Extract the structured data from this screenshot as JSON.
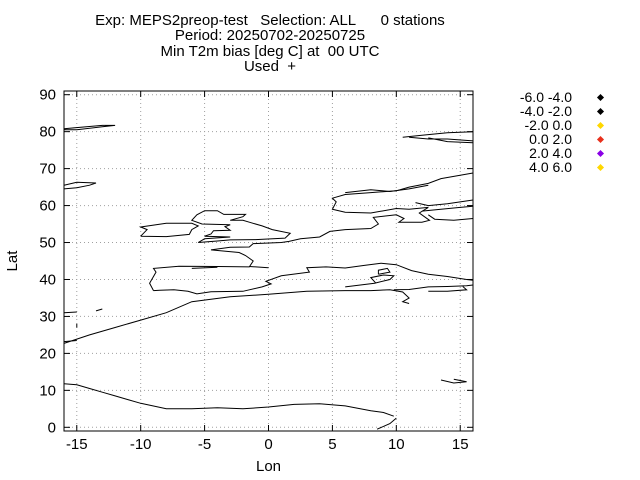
{
  "header": {
    "line1": "Exp: MEPS2preop-test   Selection: ALL      0 stations",
    "line2": "Period: 20250702-20250725",
    "line3": "Min T2m bias [deg C] at  00 UTC",
    "line4": "Used  +"
  },
  "axes": {
    "xlabel": "Lon",
    "ylabel": "Lat",
    "xlim": [
      -16,
      16
    ],
    "ylim": [
      -1,
      91
    ],
    "xticks": [
      -15,
      -10,
      -5,
      0,
      5,
      10,
      15
    ],
    "yticks": [
      0,
      10,
      20,
      30,
      40,
      50,
      60,
      70,
      80,
      90
    ],
    "grid": true
  },
  "legend": {
    "placement": "top-right",
    "items": [
      {
        "label": "-6.0 -4.0",
        "color": "#000000"
      },
      {
        "label": "-4.0 -2.0",
        "color": "#000000"
      },
      {
        "label": "-2.0 0.0",
        "color": "#ffd700"
      },
      {
        "label": "0.0 2.0",
        "color": "#e8301c"
      },
      {
        "label": "2.0 4.0",
        "color": "#8a00e6"
      },
      {
        "label": "4.0 6.0",
        "color": "#ffd700"
      }
    ]
  },
  "coastlines": [
    [
      [
        -16,
        11.8
      ],
      [
        -15,
        11.5
      ],
      [
        -14,
        10.5
      ],
      [
        -13,
        9.5
      ],
      [
        -12,
        8.5
      ],
      [
        -11,
        7.5
      ],
      [
        -10,
        6.5
      ],
      [
        -8,
        5
      ],
      [
        -6,
        5
      ],
      [
        -4,
        5.3
      ],
      [
        -2,
        5
      ],
      [
        0,
        5.5
      ],
      [
        2,
        6.2
      ],
      [
        4,
        6.4
      ],
      [
        6,
        5.8
      ],
      [
        8,
        4.5
      ],
      [
        9,
        4
      ],
      [
        9.8,
        3
      ]
    ],
    [
      [
        -16,
        22.7
      ],
      [
        -14,
        25
      ],
      [
        -12,
        27
      ],
      [
        -10,
        29
      ],
      [
        -8,
        31
      ],
      [
        -6,
        34
      ],
      [
        -3,
        35.3
      ],
      [
        0,
        36
      ],
      [
        3,
        36.8
      ],
      [
        6,
        37
      ],
      [
        8,
        37
      ],
      [
        9.5,
        37.2
      ],
      [
        10.5,
        36.6
      ],
      [
        11,
        35
      ],
      [
        10.5,
        34
      ],
      [
        11,
        33.5
      ]
    ],
    [
      [
        -16,
        23.2
      ],
      [
        -15,
        23.5
      ]
    ],
    [
      [
        9.8,
        37.2
      ],
      [
        11,
        37.3
      ],
      [
        12.5,
        38
      ],
      [
        14,
        38.1
      ],
      [
        15.5,
        38.3
      ],
      [
        16,
        38.5
      ]
    ],
    [
      [
        -9,
        37
      ],
      [
        -9.3,
        39
      ],
      [
        -8.8,
        42
      ],
      [
        -9,
        43
      ],
      [
        -7,
        43.6
      ],
      [
        -4,
        43.5
      ],
      [
        -1.5,
        43.4
      ],
      [
        -1.2,
        45
      ],
      [
        -1.8,
        46.5
      ],
      [
        -2.3,
        47.3
      ],
      [
        -4.5,
        48
      ],
      [
        -3,
        48.7
      ],
      [
        -1.5,
        48.8
      ],
      [
        -1.2,
        49.7
      ],
      [
        1,
        50
      ],
      [
        1.6,
        50.3
      ],
      [
        2.5,
        51
      ],
      [
        4,
        51.5
      ],
      [
        4.8,
        53
      ],
      [
        6,
        53.5
      ],
      [
        8,
        53.8
      ],
      [
        8.6,
        55
      ],
      [
        8.2,
        56.8
      ],
      [
        10,
        57.5
      ],
      [
        10.6,
        56.5
      ],
      [
        10.2,
        55.5
      ],
      [
        12,
        55.5
      ],
      [
        12.6,
        56
      ],
      [
        11.8,
        58
      ],
      [
        12.5,
        59.5
      ],
      [
        11,
        59
      ],
      [
        10,
        59.2
      ],
      [
        8,
        58
      ],
      [
        6,
        58.2
      ],
      [
        5,
        59
      ],
      [
        5.3,
        61
      ],
      [
        5,
        62
      ],
      [
        6,
        63
      ],
      [
        8,
        63.5
      ],
      [
        10,
        64
      ],
      [
        11,
        65
      ],
      [
        12.5,
        66
      ],
      [
        13.5,
        67.3
      ],
      [
        15,
        68.2
      ],
      [
        16,
        68.8
      ]
    ],
    [
      [
        -9,
        37
      ],
      [
        -8.5,
        37.1
      ],
      [
        -7.4,
        37.2
      ],
      [
        -6.3,
        36.8
      ],
      [
        -5.6,
        36.1
      ],
      [
        -4.5,
        36.7
      ],
      [
        -2,
        36.8
      ],
      [
        -0.5,
        38
      ],
      [
        0.2,
        38.8
      ],
      [
        -0.2,
        39.5
      ],
      [
        1,
        41
      ],
      [
        3.2,
        42
      ],
      [
        3,
        43.2
      ],
      [
        4.5,
        43.4
      ],
      [
        6,
        43.1
      ],
      [
        7.5,
        43.8
      ],
      [
        8.8,
        44.4
      ],
      [
        10,
        44
      ],
      [
        11.2,
        42.4
      ],
      [
        12.5,
        41.4
      ],
      [
        14,
        40.8
      ],
      [
        15.5,
        40
      ],
      [
        16,
        39.8
      ]
    ],
    [
      [
        -5.5,
        50
      ],
      [
        -4,
        50.4
      ],
      [
        -3,
        50.7
      ],
      [
        -1,
        50.8
      ],
      [
        1.3,
        51.2
      ],
      [
        1.7,
        52.5
      ],
      [
        0.3,
        53.5
      ],
      [
        -0.5,
        54.5
      ],
      [
        -1.5,
        55.5
      ],
      [
        -2,
        56
      ],
      [
        -3,
        56
      ],
      [
        -2,
        57
      ],
      [
        -1.8,
        57.6
      ],
      [
        -3.5,
        57.6
      ],
      [
        -4,
        58.6
      ],
      [
        -5,
        58.6
      ],
      [
        -5.6,
        57.5
      ],
      [
        -6,
        56
      ],
      [
        -5.2,
        55
      ],
      [
        -3,
        54.8
      ],
      [
        -3.4,
        54.3
      ],
      [
        -3,
        53.3
      ],
      [
        -4.3,
        53.2
      ],
      [
        -4.5,
        52.3
      ],
      [
        -5,
        51.7
      ],
      [
        -3,
        51.5
      ],
      [
        -5,
        51
      ],
      [
        -5.5,
        50
      ]
    ],
    [
      [
        -10,
        51.7
      ],
      [
        -9.5,
        53.5
      ],
      [
        -10,
        54.2
      ],
      [
        -8,
        55.2
      ],
      [
        -6,
        55.2
      ],
      [
        -5.5,
        54.5
      ],
      [
        -6,
        53.5
      ],
      [
        -6.2,
        52.2
      ],
      [
        -8,
        51.6
      ],
      [
        -10,
        51.7
      ]
    ],
    [
      [
        -16,
        65.5
      ],
      [
        -15,
        66.3
      ],
      [
        -13.5,
        66.1
      ],
      [
        -14,
        65.5
      ],
      [
        -15,
        64.8
      ],
      [
        -16,
        64.5
      ]
    ],
    [
      [
        -16,
        80.8
      ],
      [
        -13,
        81.7
      ],
      [
        -12,
        81.7
      ],
      [
        -13,
        81.3
      ],
      [
        -15,
        80.5
      ],
      [
        -16,
        80.5
      ]
    ],
    [
      [
        10.5,
        78.5
      ],
      [
        12,
        79
      ],
      [
        14,
        79.7
      ],
      [
        16,
        80
      ]
    ],
    [
      [
        11,
        78.5
      ],
      [
        12.5,
        78
      ],
      [
        14,
        78
      ],
      [
        16,
        77.5
      ]
    ],
    [
      [
        12.5,
        78.3
      ],
      [
        14,
        77.3
      ],
      [
        16,
        77
      ]
    ],
    [
      [
        -16,
        31
      ],
      [
        -15,
        31.2
      ]
    ],
    [
      [
        -13.5,
        31.5
      ],
      [
        -13,
        32
      ]
    ],
    [
      [
        -15,
        27
      ],
      [
        -15,
        28
      ]
    ],
    [
      [
        13.5,
        12.8
      ],
      [
        14.5,
        12
      ],
      [
        15.5,
        12.3
      ],
      [
        14.5,
        13
      ]
    ],
    [
      [
        8.5,
        -0.5
      ],
      [
        9.5,
        1
      ],
      [
        10,
        2.5
      ]
    ],
    [
      [
        6,
        63.5
      ],
      [
        8,
        64.3
      ],
      [
        9.5,
        63.8
      ],
      [
        11,
        64.5
      ],
      [
        12.5,
        65.5
      ]
    ],
    [
      [
        11.5,
        60.8
      ],
      [
        12.5,
        60
      ],
      [
        14,
        60.5
      ],
      [
        16,
        61.5
      ]
    ],
    [
      [
        12,
        58.5
      ],
      [
        13.5,
        59
      ],
      [
        15,
        59.5
      ],
      [
        16,
        59.8
      ]
    ],
    [
      [
        16,
        56.5
      ],
      [
        14.5,
        56
      ],
      [
        13,
        56.3
      ],
      [
        12.5,
        57.5
      ]
    ],
    [
      [
        -6,
        43
      ],
      [
        -4,
        43.3
      ]
    ],
    [
      [
        -1.5,
        43.5
      ],
      [
        0,
        43.2
      ]
    ],
    [
      [
        6,
        38
      ],
      [
        8.3,
        39
      ],
      [
        9.5,
        40
      ],
      [
        9.8,
        41
      ],
      [
        9,
        41.2
      ],
      [
        8,
        40.5
      ],
      [
        8.4,
        39
      ]
    ],
    [
      [
        8.6,
        41.4
      ],
      [
        9.5,
        42
      ],
      [
        9.3,
        43
      ],
      [
        8.6,
        42.5
      ],
      [
        8.6,
        41.4
      ]
    ],
    [
      [
        12.5,
        36.8
      ],
      [
        14,
        36.8
      ],
      [
        15.5,
        37.2
      ],
      [
        15.2,
        38.1
      ]
    ]
  ]
}
